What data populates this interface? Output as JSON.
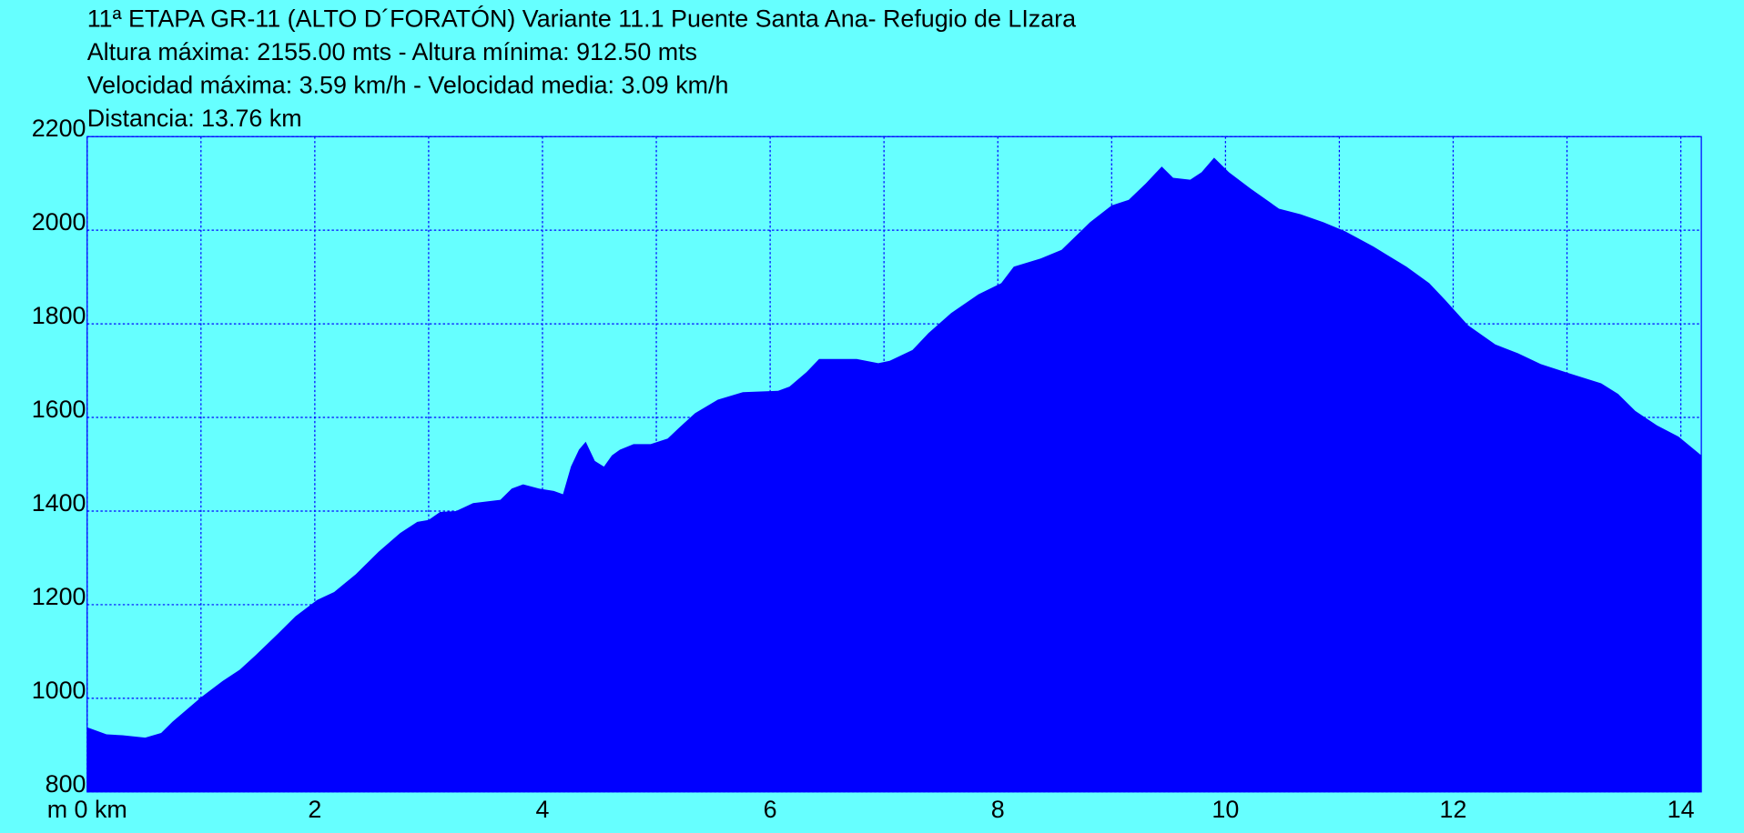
{
  "chart_data": {
    "type": "area",
    "title": "11ª ETAPA GR-11 (ALTO D´FORATÓN) Variante 11.1 Puente Santa Ana- Refugio de LIzara",
    "subtitles": [
      "Altura máxima: 2155.00 mts - Altura mínima: 912.50 mts",
      "Velocidad máxima: 3.59 km/h - Velocidad media: 3.09 km/h",
      "Distancia: 13.76 km"
    ],
    "color": "#0000ff",
    "grid": true,
    "xlim": [
      0,
      14.18
    ],
    "ylim": [
      800,
      2200
    ],
    "xticks": [
      {
        "value": 0,
        "label": "m 0 km"
      },
      2,
      4,
      6,
      8,
      10,
      12,
      14
    ],
    "xminorticks": [
      1,
      3,
      5,
      7,
      9,
      11,
      13
    ],
    "yticks": [
      800,
      1000,
      1200,
      1400,
      1600,
      1800,
      2000,
      2200
    ],
    "x": [
      0,
      0.17,
      0.31,
      0.51,
      0.65,
      0.75,
      1.0,
      1.19,
      1.34,
      1.48,
      1.68,
      1.83,
      2.02,
      2.17,
      2.36,
      2.56,
      2.75,
      2.9,
      3.0,
      3.1,
      3.24,
      3.39,
      3.63,
      3.73,
      3.83,
      3.97,
      4.1,
      4.18,
      4.25,
      4.32,
      4.38,
      4.46,
      4.54,
      4.61,
      4.68,
      4.8,
      4.95,
      5.1,
      5.2,
      5.34,
      5.54,
      5.76,
      6.07,
      6.17,
      6.32,
      6.43,
      6.76,
      6.95,
      7.05,
      7.25,
      7.39,
      7.59,
      7.83,
      8.03,
      8.14,
      8.37,
      8.56,
      8.81,
      9.0,
      9.15,
      9.3,
      9.44,
      9.54,
      9.69,
      9.79,
      9.9,
      10.03,
      10.22,
      10.47,
      10.66,
      10.86,
      11.05,
      11.3,
      11.59,
      11.79,
      11.93,
      12.13,
      12.37,
      12.57,
      12.77,
      13.01,
      13.3,
      13.45,
      13.6,
      13.79,
      13.98,
      14.18
    ],
    "values": [
      938,
      923,
      921,
      916,
      926,
      950,
      1002,
      1037,
      1061,
      1092,
      1139,
      1175,
      1210,
      1227,
      1265,
      1313,
      1353,
      1377,
      1381,
      1398,
      1400,
      1417,
      1424,
      1448,
      1457,
      1448,
      1443,
      1436,
      1495,
      1531,
      1548,
      1507,
      1495,
      1519,
      1531,
      1543,
      1543,
      1555,
      1578,
      1609,
      1638,
      1654,
      1657,
      1666,
      1697,
      1725,
      1725,
      1716,
      1721,
      1744,
      1780,
      1823,
      1863,
      1887,
      1922,
      1939,
      1958,
      2017,
      2053,
      2065,
      2100,
      2136,
      2112,
      2108,
      2124,
      2155,
      2124,
      2089,
      2046,
      2034,
      2017,
      1998,
      1965,
      1922,
      1887,
      1851,
      1797,
      1756,
      1737,
      1714,
      1695,
      1673,
      1650,
      1614,
      1583,
      1559,
      1519
    ]
  }
}
